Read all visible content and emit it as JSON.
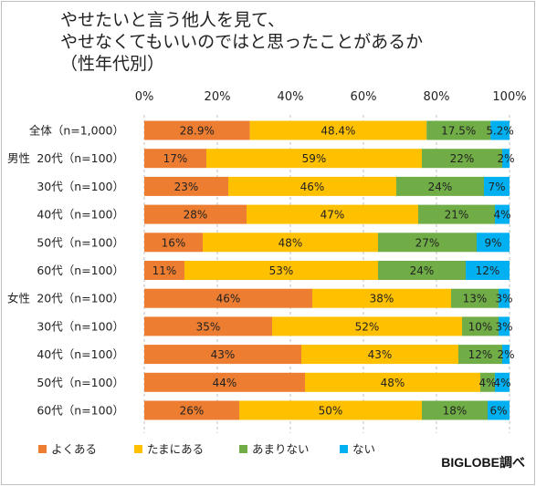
{
  "title_lines": [
    "やせたいと言う他人を見て、",
    "やせなくてもいいのではと思ったことがあるか",
    "（性年代別）"
  ],
  "credit": "BIGLOBE調べ",
  "colors": {
    "よくある": "#ED7D31",
    "たまにある": "#FFC000",
    "あまりない": "#70AD47",
    "ない": "#00B0F0"
  },
  "chart_data": {
    "type": "bar",
    "orientation": "horizontal",
    "stacked": true,
    "percent_stacked": true,
    "x_ticks": [
      "0%",
      "20%",
      "40%",
      "60%",
      "80%",
      "100%"
    ],
    "xlim": [
      0,
      100
    ],
    "grid": true,
    "legend_position": "bottom",
    "group_labels": [
      "",
      "男性",
      "",
      "",
      "",
      "",
      "女性",
      "",
      "",
      "",
      ""
    ],
    "categories": [
      "全体（n=1,000）",
      "20代（n=100）",
      "30代（n=100）",
      "40代（n=100）",
      "50代（n=100）",
      "60代（n=100）",
      "20代（n=100）",
      "30代（n=100）",
      "40代（n=100）",
      "50代（n=100）",
      "60代（n=100）"
    ],
    "series": [
      {
        "name": "よくある",
        "values": [
          28.9,
          17,
          23,
          28,
          16,
          11,
          46,
          35,
          43,
          44,
          26
        ],
        "labels": [
          "28.9%",
          "17%",
          "23%",
          "28%",
          "16%",
          "11%",
          "46%",
          "35%",
          "43%",
          "44%",
          "26%"
        ]
      },
      {
        "name": "たまにある",
        "values": [
          48.4,
          59,
          46,
          47,
          48,
          53,
          38,
          52,
          43,
          48,
          50
        ],
        "labels": [
          "48.4%",
          "59%",
          "46%",
          "47%",
          "48%",
          "53%",
          "38%",
          "52%",
          "43%",
          "48%",
          "50%"
        ]
      },
      {
        "name": "あまりない",
        "values": [
          17.5,
          22,
          24,
          21,
          27,
          24,
          13,
          10,
          12,
          4,
          18
        ],
        "labels": [
          "17.5%",
          "22%",
          "24%",
          "21%",
          "27%",
          "24%",
          "13%",
          "10%",
          "12%",
          "4%",
          "18%"
        ]
      },
      {
        "name": "ない",
        "values": [
          5.2,
          2,
          7,
          4,
          9,
          12,
          3,
          3,
          2,
          4,
          6
        ],
        "labels": [
          "5.2%",
          "2%",
          "7%",
          "4%",
          "9%",
          "12%",
          "3%",
          "3%",
          "2%",
          "4%",
          "6%"
        ]
      }
    ]
  }
}
